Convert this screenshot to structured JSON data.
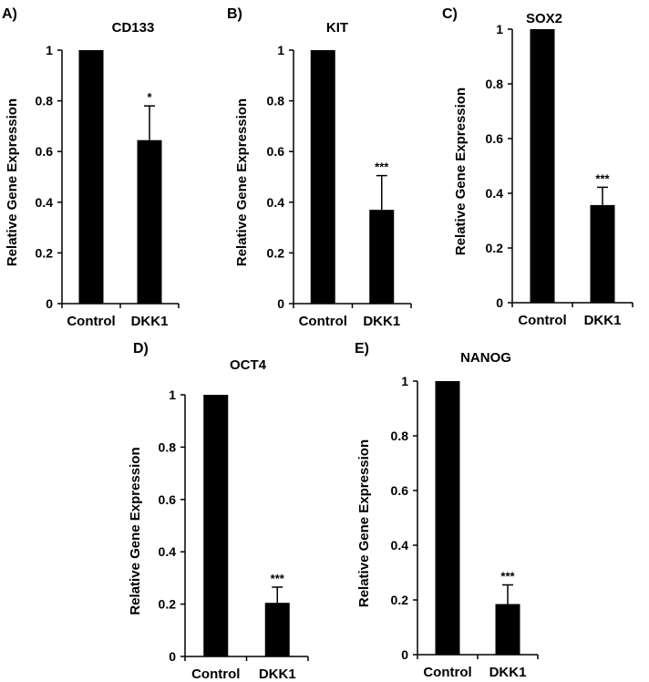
{
  "chart_data": [
    {
      "type": "bar",
      "panel": "A)",
      "title": "CD133",
      "ylabel": "Relative Gene Expression",
      "categories": [
        "Control",
        "DKK1"
      ],
      "values": [
        1.0,
        0.645
      ],
      "errors": [
        0,
        0.135
      ],
      "annotations": [
        "",
        "*"
      ],
      "ylim": [
        0,
        1
      ],
      "yticks": [
        "0",
        "0.2",
        "0.4",
        "0.6",
        "0.8",
        "1"
      ],
      "grid": false,
      "legend": "none"
    },
    {
      "type": "bar",
      "panel": "B)",
      "title": "KIT",
      "ylabel": "Relative Gene Expression",
      "categories": [
        "Control",
        "DKK1"
      ],
      "values": [
        1.0,
        0.37
      ],
      "errors": [
        0,
        0.135
      ],
      "annotations": [
        "",
        "***"
      ],
      "ylim": [
        0,
        1
      ],
      "yticks": [
        "0",
        "0.2",
        "0.4",
        "0.6",
        "0.8",
        "1"
      ],
      "grid": false,
      "legend": "none"
    },
    {
      "type": "bar",
      "panel": "C)",
      "title": "SOX2",
      "ylabel": "Relative Gene Expression",
      "categories": [
        "Control",
        "DKK1"
      ],
      "values": [
        1.0,
        0.357
      ],
      "errors": [
        0,
        0.065
      ],
      "annotations": [
        "",
        "***"
      ],
      "ylim": [
        0,
        1
      ],
      "yticks": [
        "0",
        "0.2",
        "0.4",
        "0.6",
        "0.8",
        "1"
      ],
      "grid": false,
      "legend": "none"
    },
    {
      "type": "bar",
      "panel": "D)",
      "title": "OCT4",
      "ylabel": "Relative Gene Expression",
      "categories": [
        "Control",
        "DKK1"
      ],
      "values": [
        1.0,
        0.205
      ],
      "errors": [
        0,
        0.06
      ],
      "annotations": [
        "",
        "***"
      ],
      "ylim": [
        0,
        1
      ],
      "yticks": [
        "0",
        "0.2",
        "0.4",
        "0.6",
        "0.8",
        "1"
      ],
      "grid": false,
      "legend": "none"
    },
    {
      "type": "bar",
      "panel": "E)",
      "title": "NANOG",
      "ylabel": "Relative Gene Expression",
      "categories": [
        "Control",
        "DKK1"
      ],
      "values": [
        1.0,
        0.185
      ],
      "errors": [
        0,
        0.07
      ],
      "annotations": [
        "",
        "***"
      ],
      "ylim": [
        0,
        1
      ],
      "yticks": [
        "0",
        "0.2",
        "0.4",
        "0.6",
        "0.8",
        "1"
      ],
      "grid": false,
      "legend": "none"
    }
  ],
  "colors": {
    "bar": "#000000",
    "axis": "#000000"
  }
}
